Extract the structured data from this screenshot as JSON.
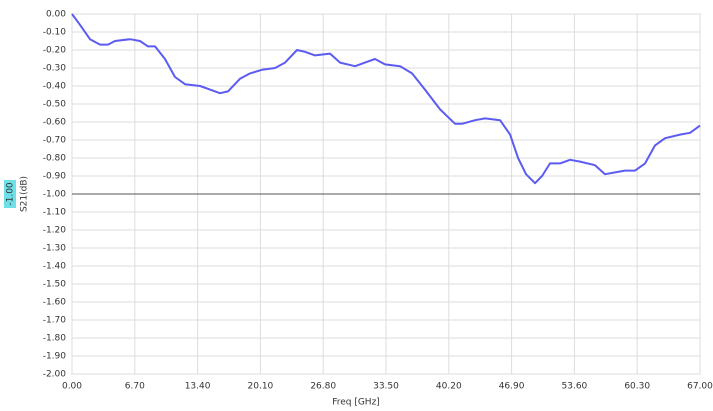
{
  "chart_data": {
    "type": "line",
    "x_label": "Freq [GHz]",
    "y_label": "S21(dB)",
    "x": [
      0,
      0.85,
      1.92,
      2.99,
      3.84,
      4.59,
      6.19,
      7.25,
      8.11,
      8.86,
      9.92,
      10.99,
      12.06,
      13.66,
      14.72,
      15.79,
      16.64,
      17.92,
      18.99,
      20.27,
      21.66,
      22.73,
      24.01,
      24.86,
      25.93,
      27.53,
      28.6,
      30.2,
      31.26,
      32.33,
      33.4,
      35.0,
      36.28,
      37.66,
      39.27,
      40.87,
      41.62,
      43.0,
      44.07,
      45.67,
      46.74,
      47.59,
      48.44,
      49.4,
      50.15,
      51.0,
      52.07,
      53.14,
      54.2,
      55.8,
      56.87,
      57.94,
      59.0,
      60.07,
      61.14,
      62.2,
      63.27,
      64.87,
      65.94,
      67.0
    ],
    "values": [
      0.0,
      -0.06,
      -0.14,
      -0.17,
      -0.17,
      -0.15,
      -0.14,
      -0.15,
      -0.18,
      -0.18,
      -0.25,
      -0.35,
      -0.39,
      -0.4,
      -0.42,
      -0.44,
      -0.43,
      -0.36,
      -0.33,
      -0.31,
      -0.3,
      -0.27,
      -0.2,
      -0.21,
      -0.23,
      -0.22,
      -0.27,
      -0.29,
      -0.27,
      -0.25,
      -0.28,
      -0.29,
      -0.33,
      -0.42,
      -0.53,
      -0.61,
      -0.61,
      -0.59,
      -0.58,
      -0.59,
      -0.67,
      -0.8,
      -0.89,
      -0.94,
      -0.9,
      -0.83,
      -0.83,
      -0.81,
      -0.82,
      -0.84,
      -0.89,
      -0.88,
      -0.87,
      -0.87,
      -0.83,
      -0.73,
      -0.69,
      -0.67,
      -0.66,
      -0.62
    ],
    "color": "#5c5cf2",
    "xlim": [
      0,
      67
    ],
    "ylim": [
      -2,
      0
    ],
    "xticks": [
      {
        "value": 0,
        "label": "0.00"
      },
      {
        "value": 6.7,
        "label": "6.70"
      },
      {
        "value": 13.4,
        "label": "13.40"
      },
      {
        "value": 20.1,
        "label": "20.10"
      },
      {
        "value": 26.8,
        "label": "26.80"
      },
      {
        "value": 33.5,
        "label": "33.50"
      },
      {
        "value": 40.2,
        "label": "40.20"
      },
      {
        "value": 46.9,
        "label": "46.90"
      },
      {
        "value": 53.6,
        "label": "53.60"
      },
      {
        "value": 60.3,
        "label": "60.30"
      },
      {
        "value": 67,
        "label": "67.00"
      }
    ],
    "yticks": [
      {
        "value": 0,
        "label": "0.00"
      },
      {
        "value": -0.1,
        "label": "-0.10"
      },
      {
        "value": -0.2,
        "label": "-0.20"
      },
      {
        "value": -0.3,
        "label": "-0.30"
      },
      {
        "value": -0.4,
        "label": "-0.40"
      },
      {
        "value": -0.5,
        "label": "-0.50"
      },
      {
        "value": -0.6,
        "label": "-0.60"
      },
      {
        "value": -0.7,
        "label": "-0.70"
      },
      {
        "value": -0.8,
        "label": "-0.80"
      },
      {
        "value": -0.9,
        "label": "-0.90"
      },
      {
        "value": -1.0,
        "label": "-1.00"
      },
      {
        "value": -1.1,
        "label": "-1.10"
      },
      {
        "value": -1.2,
        "label": "-1.20"
      },
      {
        "value": -1.3,
        "label": "-1.30"
      },
      {
        "value": -1.4,
        "label": "-1.40"
      },
      {
        "value": -1.5,
        "label": "-1.50"
      },
      {
        "value": -1.6,
        "label": "-1.60"
      },
      {
        "value": -1.7,
        "label": "-1.70"
      },
      {
        "value": -1.8,
        "label": "-1.80"
      },
      {
        "value": -1.9,
        "label": "-1.90"
      },
      {
        "value": -2.0,
        "label": "-2.00"
      }
    ],
    "grid": true,
    "marker": {
      "value": -1.0,
      "label": "-1.00"
    }
  }
}
